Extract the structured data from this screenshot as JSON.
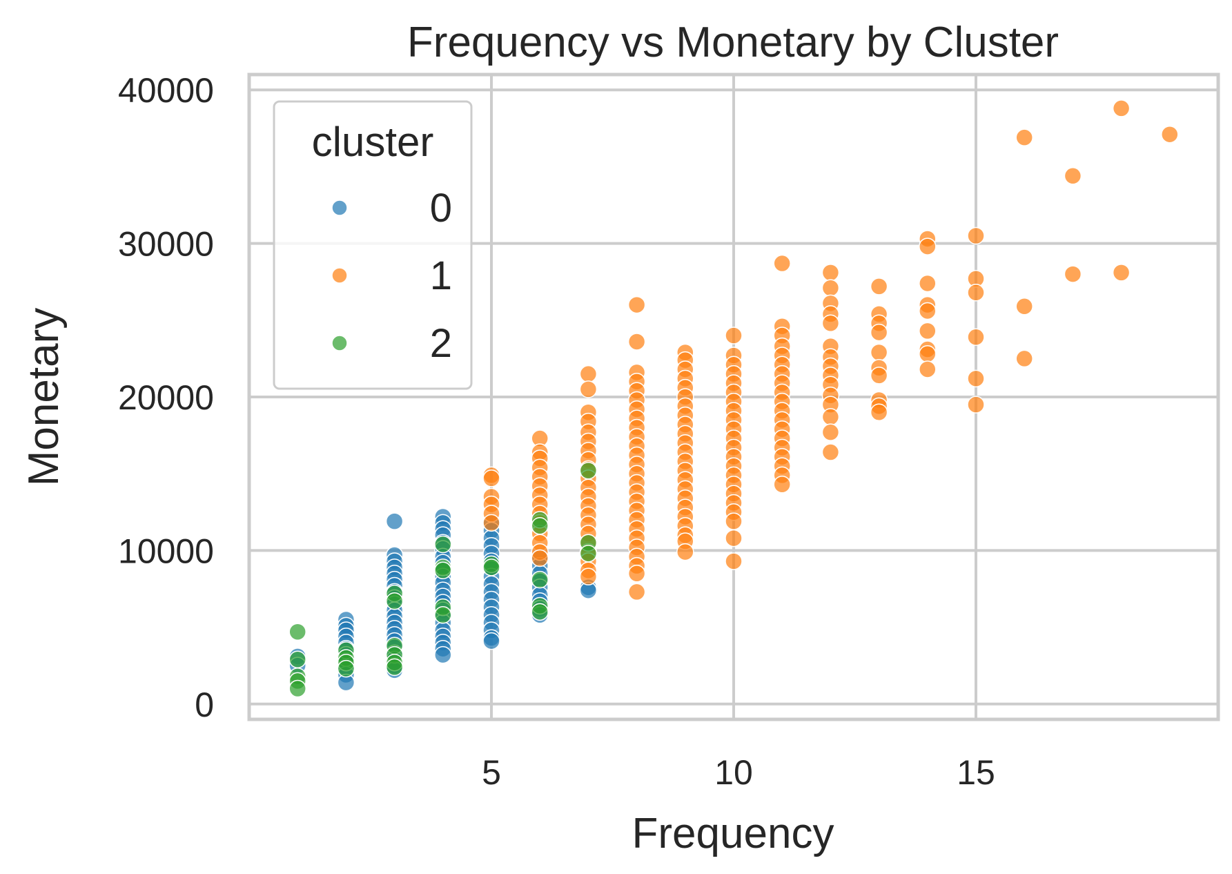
{
  "chart_data": {
    "type": "scatter",
    "title": "Frequency vs Monetary by Cluster",
    "xlabel": "Frequency",
    "ylabel": "Monetary",
    "xlim": [
      0,
      20
    ],
    "ylim": [
      -1000,
      41000
    ],
    "xticks": [
      5,
      10,
      15
    ],
    "yticks": [
      0,
      10000,
      20000,
      30000,
      40000
    ],
    "xtick_labels": [
      "5",
      "10",
      "15"
    ],
    "ytick_labels": [
      "0",
      "10000",
      "20000",
      "30000",
      "40000"
    ],
    "grid": true,
    "legend": {
      "title": "cluster",
      "placement": "upper-left"
    },
    "colors": {
      "0": "#1f77b4",
      "1": "#ff7f0e",
      "2": "#2ca02c",
      "grid": "#cccccc",
      "text": "#262626"
    },
    "series": [
      {
        "name": "0",
        "color": "#1f77b4",
        "points": [
          [
            1,
            3100
          ],
          [
            1,
            2500
          ],
          [
            2,
            5500
          ],
          [
            2,
            5100
          ],
          [
            2,
            4800
          ],
          [
            2,
            4400
          ],
          [
            2,
            4000
          ],
          [
            2,
            3600
          ],
          [
            2,
            3200
          ],
          [
            2,
            2800
          ],
          [
            2,
            2400
          ],
          [
            2,
            1900
          ],
          [
            2,
            1400
          ],
          [
            3,
            11900
          ],
          [
            3,
            9700
          ],
          [
            3,
            9300
          ],
          [
            3,
            8900
          ],
          [
            3,
            8500
          ],
          [
            3,
            8100
          ],
          [
            3,
            7700
          ],
          [
            3,
            7300
          ],
          [
            3,
            6900
          ],
          [
            3,
            6500
          ],
          [
            3,
            6100
          ],
          [
            3,
            5700
          ],
          [
            3,
            5300
          ],
          [
            3,
            4900
          ],
          [
            3,
            4500
          ],
          [
            3,
            4100
          ],
          [
            3,
            3700
          ],
          [
            3,
            3300
          ],
          [
            3,
            2900
          ],
          [
            3,
            2500
          ],
          [
            3,
            2200
          ],
          [
            4,
            12200
          ],
          [
            4,
            11800
          ],
          [
            4,
            11400
          ],
          [
            4,
            11000
          ],
          [
            4,
            10500
          ],
          [
            4,
            10100
          ],
          [
            4,
            9600
          ],
          [
            4,
            9200
          ],
          [
            4,
            8800
          ],
          [
            4,
            8300
          ],
          [
            4,
            7900
          ],
          [
            4,
            7400
          ],
          [
            4,
            7000
          ],
          [
            4,
            6600
          ],
          [
            4,
            6100
          ],
          [
            4,
            5700
          ],
          [
            4,
            5300
          ],
          [
            4,
            4800
          ],
          [
            4,
            4400
          ],
          [
            4,
            4000
          ],
          [
            4,
            3600
          ],
          [
            4,
            3200
          ],
          [
            5,
            11800
          ],
          [
            5,
            11300
          ],
          [
            5,
            10800
          ],
          [
            5,
            10300
          ],
          [
            5,
            9800
          ],
          [
            5,
            9300
          ],
          [
            5,
            8800
          ],
          [
            5,
            8300
          ],
          [
            5,
            7800
          ],
          [
            5,
            7300
          ],
          [
            5,
            6800
          ],
          [
            5,
            6300
          ],
          [
            5,
            5800
          ],
          [
            5,
            5300
          ],
          [
            5,
            4800
          ],
          [
            5,
            4300
          ],
          [
            5,
            4100
          ],
          [
            6,
            9500
          ],
          [
            6,
            9000
          ],
          [
            6,
            8500
          ],
          [
            6,
            8000
          ],
          [
            6,
            7600
          ],
          [
            6,
            7100
          ],
          [
            6,
            6700
          ],
          [
            6,
            6200
          ],
          [
            6,
            5800
          ],
          [
            7,
            7600
          ],
          [
            7,
            7400
          ]
        ]
      },
      {
        "name": "1",
        "color": "#ff7f0e",
        "points": [
          [
            5,
            14900
          ],
          [
            5,
            14700
          ],
          [
            5,
            13500
          ],
          [
            5,
            13000
          ],
          [
            5,
            12400
          ],
          [
            5,
            11800
          ],
          [
            6,
            17300
          ],
          [
            6,
            16400
          ],
          [
            6,
            16000
          ],
          [
            6,
            15400
          ],
          [
            6,
            14800
          ],
          [
            6,
            14200
          ],
          [
            6,
            13600
          ],
          [
            6,
            13000
          ],
          [
            6,
            12400
          ],
          [
            6,
            11800
          ],
          [
            6,
            11100
          ],
          [
            6,
            10500
          ],
          [
            6,
            9900
          ],
          [
            6,
            9500
          ],
          [
            7,
            21500
          ],
          [
            7,
            20500
          ],
          [
            7,
            19000
          ],
          [
            7,
            18400
          ],
          [
            7,
            17700
          ],
          [
            7,
            17100
          ],
          [
            7,
            16500
          ],
          [
            7,
            15900
          ],
          [
            7,
            15300
          ],
          [
            7,
            14700
          ],
          [
            7,
            14100
          ],
          [
            7,
            13500
          ],
          [
            7,
            12900
          ],
          [
            7,
            12300
          ],
          [
            7,
            11700
          ],
          [
            7,
            11100
          ],
          [
            7,
            10500
          ],
          [
            7,
            9900
          ],
          [
            7,
            9300
          ],
          [
            7,
            8700
          ],
          [
            7,
            8300
          ],
          [
            8,
            26000
          ],
          [
            8,
            23600
          ],
          [
            8,
            21600
          ],
          [
            8,
            21000
          ],
          [
            8,
            20400
          ],
          [
            8,
            19800
          ],
          [
            8,
            19200
          ],
          [
            8,
            18600
          ],
          [
            8,
            18000
          ],
          [
            8,
            17400
          ],
          [
            8,
            16800
          ],
          [
            8,
            16200
          ],
          [
            8,
            15600
          ],
          [
            8,
            15000
          ],
          [
            8,
            14400
          ],
          [
            8,
            13800
          ],
          [
            8,
            13200
          ],
          [
            8,
            12600
          ],
          [
            8,
            12000
          ],
          [
            8,
            11400
          ],
          [
            8,
            10800
          ],
          [
            8,
            10200
          ],
          [
            8,
            9600
          ],
          [
            8,
            9000
          ],
          [
            8,
            8500
          ],
          [
            8,
            7300
          ],
          [
            9,
            22900
          ],
          [
            9,
            22400
          ],
          [
            9,
            21800
          ],
          [
            9,
            21200
          ],
          [
            9,
            20600
          ],
          [
            9,
            20000
          ],
          [
            9,
            19400
          ],
          [
            9,
            18800
          ],
          [
            9,
            18200
          ],
          [
            9,
            17600
          ],
          [
            9,
            17000
          ],
          [
            9,
            16400
          ],
          [
            9,
            15800
          ],
          [
            9,
            15200
          ],
          [
            9,
            14600
          ],
          [
            9,
            14000
          ],
          [
            9,
            13400
          ],
          [
            9,
            12800
          ],
          [
            9,
            12200
          ],
          [
            9,
            11600
          ],
          [
            9,
            11000
          ],
          [
            9,
            10600
          ],
          [
            9,
            9900
          ],
          [
            10,
            24000
          ],
          [
            10,
            22700
          ],
          [
            10,
            22100
          ],
          [
            10,
            21500
          ],
          [
            10,
            20900
          ],
          [
            10,
            20300
          ],
          [
            10,
            19700
          ],
          [
            10,
            19100
          ],
          [
            10,
            18500
          ],
          [
            10,
            17900
          ],
          [
            10,
            17300
          ],
          [
            10,
            16700
          ],
          [
            10,
            16100
          ],
          [
            10,
            15500
          ],
          [
            10,
            14900
          ],
          [
            10,
            14300
          ],
          [
            10,
            13700
          ],
          [
            10,
            13100
          ],
          [
            10,
            12500
          ],
          [
            10,
            11900
          ],
          [
            10,
            10800
          ],
          [
            10,
            9300
          ],
          [
            11,
            28700
          ],
          [
            11,
            24600
          ],
          [
            11,
            24000
          ],
          [
            11,
            23300
          ],
          [
            11,
            22700
          ],
          [
            11,
            22100
          ],
          [
            11,
            21500
          ],
          [
            11,
            20900
          ],
          [
            11,
            20300
          ],
          [
            11,
            19700
          ],
          [
            11,
            19100
          ],
          [
            11,
            18500
          ],
          [
            11,
            17900
          ],
          [
            11,
            17300
          ],
          [
            11,
            16700
          ],
          [
            11,
            16100
          ],
          [
            11,
            15500
          ],
          [
            11,
            14900
          ],
          [
            11,
            14300
          ],
          [
            12,
            28100
          ],
          [
            12,
            27100
          ],
          [
            12,
            26100
          ],
          [
            12,
            25400
          ],
          [
            12,
            24800
          ],
          [
            12,
            23300
          ],
          [
            12,
            22600
          ],
          [
            12,
            22000
          ],
          [
            12,
            21400
          ],
          [
            12,
            20800
          ],
          [
            12,
            20100
          ],
          [
            12,
            19500
          ],
          [
            12,
            18700
          ],
          [
            12,
            17700
          ],
          [
            12,
            16400
          ],
          [
            13,
            27200
          ],
          [
            13,
            25400
          ],
          [
            13,
            24800
          ],
          [
            13,
            24200
          ],
          [
            13,
            22900
          ],
          [
            13,
            21900
          ],
          [
            13,
            21400
          ],
          [
            13,
            19800
          ],
          [
            13,
            19400
          ],
          [
            13,
            19000
          ],
          [
            14,
            30300
          ],
          [
            14,
            29800
          ],
          [
            14,
            27400
          ],
          [
            14,
            26000
          ],
          [
            14,
            25600
          ],
          [
            14,
            24300
          ],
          [
            14,
            23100
          ],
          [
            14,
            22800
          ],
          [
            14,
            21800
          ],
          [
            15,
            30500
          ],
          [
            15,
            27700
          ],
          [
            15,
            26800
          ],
          [
            15,
            23900
          ],
          [
            15,
            21200
          ],
          [
            15,
            19500
          ],
          [
            16,
            36900
          ],
          [
            16,
            25900
          ],
          [
            16,
            22500
          ],
          [
            17,
            34400
          ],
          [
            17,
            28000
          ],
          [
            18,
            38800
          ],
          [
            18,
            28100
          ],
          [
            19,
            37100
          ]
        ]
      },
      {
        "name": "2",
        "color": "#2ca02c",
        "points": [
          [
            1,
            4700
          ],
          [
            1,
            2900
          ],
          [
            1,
            1800
          ],
          [
            1,
            1500
          ],
          [
            1,
            1000
          ],
          [
            2,
            3500
          ],
          [
            2,
            3000
          ],
          [
            2,
            2700
          ],
          [
            2,
            2300
          ],
          [
            3,
            7200
          ],
          [
            3,
            6700
          ],
          [
            3,
            3800
          ],
          [
            3,
            3200
          ],
          [
            3,
            2700
          ],
          [
            3,
            2400
          ],
          [
            4,
            10400
          ],
          [
            4,
            8900
          ],
          [
            4,
            8700
          ],
          [
            4,
            6300
          ],
          [
            4,
            5800
          ],
          [
            5,
            9100
          ],
          [
            5,
            8900
          ],
          [
            6,
            12000
          ],
          [
            6,
            11600
          ],
          [
            6,
            8100
          ],
          [
            6,
            6400
          ],
          [
            6,
            6000
          ],
          [
            7,
            15200
          ],
          [
            7,
            10500
          ],
          [
            7,
            9800
          ]
        ]
      }
    ]
  }
}
